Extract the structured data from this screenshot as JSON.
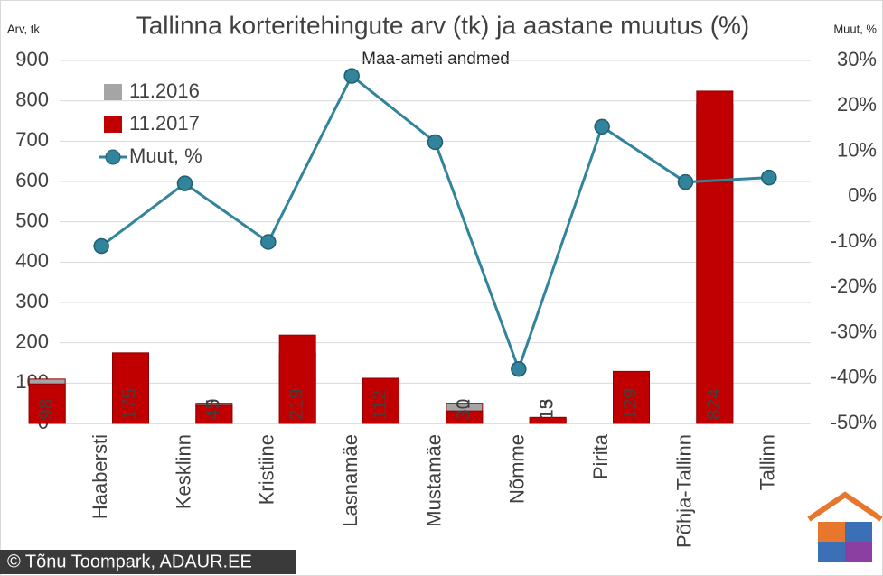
{
  "chart_data": {
    "type": "bar-line",
    "title": "Tallinna korteritehingute arv (tk) ja aastane muutus (%)",
    "subtitle": "Maa-ameti andmed",
    "y_label": "Arv, tk",
    "y2_label": "Muut, %",
    "categories": [
      "Haabersti",
      "Kesklinn",
      "Kristiine",
      "Lasnamäe",
      "Mustamäe",
      "Nõmme",
      "Pirita",
      "Põhja-Tallinn",
      "Tallinn"
    ],
    "series": [
      {
        "name": "11.2016",
        "type": "bar",
        "color": "#a5a5a5",
        "values": [
          110,
          170,
          50,
          173,
          100,
          50,
          13,
          125,
          791
        ]
      },
      {
        "name": "11.2017",
        "type": "bar",
        "color": "#c00000",
        "values": [
          98,
          175,
          45,
          219,
          112,
          31,
          15,
          129,
          824
        ]
      },
      {
        "name": "Muut, %",
        "type": "line",
        "axis": "y2",
        "color": "#31849b",
        "values": [
          -10.9,
          2.9,
          -10,
          26.6,
          12,
          -38,
          15.4,
          3.2,
          4.2
        ]
      }
    ],
    "ylim": [
      0,
      900
    ],
    "yticks": [
      0,
      100,
      200,
      300,
      400,
      500,
      600,
      700,
      800,
      900
    ],
    "y2lim": [
      -50,
      30
    ],
    "y2ticks": [
      {
        "value": -50,
        "label": "-50%"
      },
      {
        "value": -40,
        "label": "-40%"
      },
      {
        "value": -30,
        "label": "-30%"
      },
      {
        "value": -20,
        "label": "-20%"
      },
      {
        "value": -10,
        "label": "-10%"
      },
      {
        "value": 0,
        "label": "0%"
      },
      {
        "value": 10,
        "label": "10%"
      },
      {
        "value": 20,
        "label": "20%"
      },
      {
        "value": 30,
        "label": "30%"
      }
    ],
    "grid": true,
    "legend_position": "top-left",
    "footer": "© Tõnu Toompark, ADAUR.EE"
  }
}
